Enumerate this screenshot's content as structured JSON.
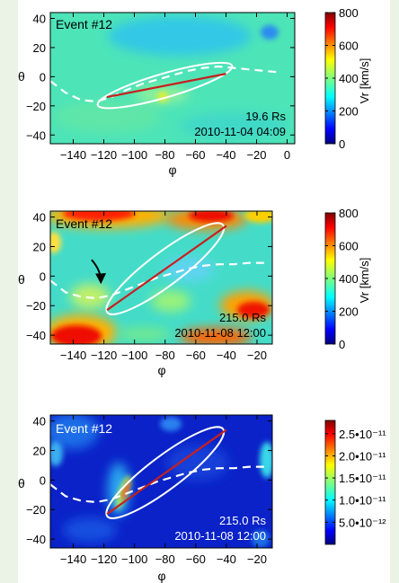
{
  "chart_data": [
    {
      "type": "heatmap",
      "title": "Event #12",
      "xlabel": "φ",
      "ylabel": "θ",
      "xlim": [
        -155,
        5
      ],
      "ylim": [
        -46,
        44
      ],
      "xticks": [
        -140,
        -120,
        -100,
        -80,
        -60,
        -40,
        -20,
        0
      ],
      "xtick_labels": [
        "−140",
        "−120",
        "−100",
        "−80",
        "−60",
        "−40",
        "−20",
        "0"
      ],
      "yticks": [
        40,
        20,
        0,
        -20,
        -40
      ],
      "ytick_labels": [
        "40",
        "20",
        "0",
        "−20",
        "−40"
      ],
      "annotation_distance": "19.6 Rs",
      "annotation_time": "2010-11-04 04:09",
      "colorbar": {
        "label": "Vr [km/s]",
        "range": [
          0,
          800
        ],
        "ticks": [
          800,
          600,
          400,
          200,
          0
        ],
        "tick_labels": [
          "800",
          "600",
          "400",
          "200",
          "0"
        ]
      },
      "ellipse": {
        "center": [
          -80,
          -6
        ],
        "semi_major": 46,
        "semi_minor": 8,
        "angle_deg": 17
      },
      "axis_line": {
        "x": [
          -118,
          -40
        ],
        "y": [
          -14,
          2
        ]
      },
      "current_sheet": {
        "x": [
          -155,
          -145,
          -135,
          -125,
          -115,
          -105,
          -95,
          -85,
          -75,
          -65,
          -55,
          -45,
          -35,
          -25,
          -15,
          -5
        ],
        "y": [
          -3,
          -11,
          -16,
          -17,
          -14,
          -9,
          -5,
          -2,
          1,
          4,
          6,
          7,
          6,
          5,
          4,
          3
        ]
      }
    },
    {
      "type": "heatmap",
      "title": "Event #12",
      "xlabel": "φ",
      "ylabel": "θ",
      "xlim": [
        -155,
        -10
      ],
      "ylim": [
        -46,
        44
      ],
      "xticks": [
        -140,
        -120,
        -100,
        -80,
        -60,
        -40,
        -20
      ],
      "xtick_labels": [
        "−140",
        "−120",
        "−100",
        "−80",
        "−60",
        "−40",
        "−20"
      ],
      "yticks": [
        40,
        20,
        0,
        -20,
        -40
      ],
      "ytick_labels": [
        "40",
        "20",
        "0",
        "−20",
        "−40"
      ],
      "annotation_distance": "215.0 Rs",
      "annotation_time": "2010-11-08 12:00",
      "colorbar": {
        "label": "Vr [km/s]",
        "range": [
          0,
          800
        ],
        "ticks": [
          800,
          600,
          400,
          200,
          0
        ],
        "tick_labels": [
          "800",
          "600",
          "400",
          "200",
          "0"
        ]
      },
      "ellipse": {
        "center": [
          -80,
          5
        ],
        "semi_major": 48,
        "semi_minor": 11,
        "angle_deg": 38
      },
      "axis_line": {
        "x": [
          -118,
          -40
        ],
        "y": [
          -23,
          34
        ]
      },
      "current_sheet": {
        "x": [
          -155,
          -145,
          -135,
          -125,
          -115,
          -105,
          -95,
          -85,
          -75,
          -65,
          -55,
          -45,
          -35,
          -25,
          -15
        ],
        "y": [
          -3,
          -11,
          -14,
          -15,
          -13,
          -9,
          -5,
          -1,
          2,
          5,
          7,
          8,
          8,
          9,
          9
        ]
      },
      "arrow": {
        "from": [
          -128,
          11
        ],
        "to": [
          -122,
          -3
        ]
      }
    },
    {
      "type": "heatmap",
      "title": "Event #12",
      "xlabel": "φ",
      "ylabel": "θ",
      "xlim": [
        -155,
        -10
      ],
      "ylim": [
        -46,
        44
      ],
      "xticks": [
        -140,
        -120,
        -100,
        -80,
        -60,
        -40,
        -20
      ],
      "xtick_labels": [
        "−140",
        "−120",
        "−100",
        "−80",
        "−60",
        "−40",
        "−20"
      ],
      "yticks": [
        40,
        20,
        0,
        -20,
        -40
      ],
      "ytick_labels": [
        "40",
        "20",
        "0",
        "−20",
        "−40"
      ],
      "annotation_distance": "215.0 Rs",
      "annotation_time": "2010-11-08 12:00",
      "colorbar": {
        "label": "",
        "range": [
          0,
          2.8e-11
        ],
        "ticks": [
          2.5e-11,
          2e-11,
          1.5e-11,
          1e-11,
          5e-12
        ],
        "tick_labels": [
          "2.5•10⁻¹¹",
          "2.0•10⁻¹¹",
          "1.5•10⁻¹¹",
          "1.0•10⁻¹¹",
          "5.0•10⁻¹²"
        ]
      },
      "ellipse": {
        "center": [
          -80,
          5
        ],
        "semi_major": 48,
        "semi_minor": 11,
        "angle_deg": 38
      },
      "axis_line": {
        "x": [
          -118,
          -40
        ],
        "y": [
          -23,
          34
        ]
      },
      "current_sheet": {
        "x": [
          -155,
          -145,
          -135,
          -125,
          -115,
          -105,
          -95,
          -85,
          -75,
          -65,
          -55,
          -45,
          -35,
          -25,
          -15
        ],
        "y": [
          -3,
          -11,
          -14,
          -15,
          -13,
          -9,
          -5,
          -1,
          2,
          5,
          7,
          8,
          8,
          9,
          9
        ]
      }
    }
  ],
  "colors": {
    "jet": [
      "#00007f",
      "#0000ff",
      "#007fff",
      "#00ffff",
      "#7fff7f",
      "#ffff00",
      "#ff7f00",
      "#ff0000",
      "#7f0000"
    ],
    "panel1_bg": "#4de4b8",
    "panel2_bg": "#44dcc8",
    "panel3_bg": "#0a22c8",
    "axis_line": "#c8201e",
    "ellipse": "#ffffff"
  }
}
